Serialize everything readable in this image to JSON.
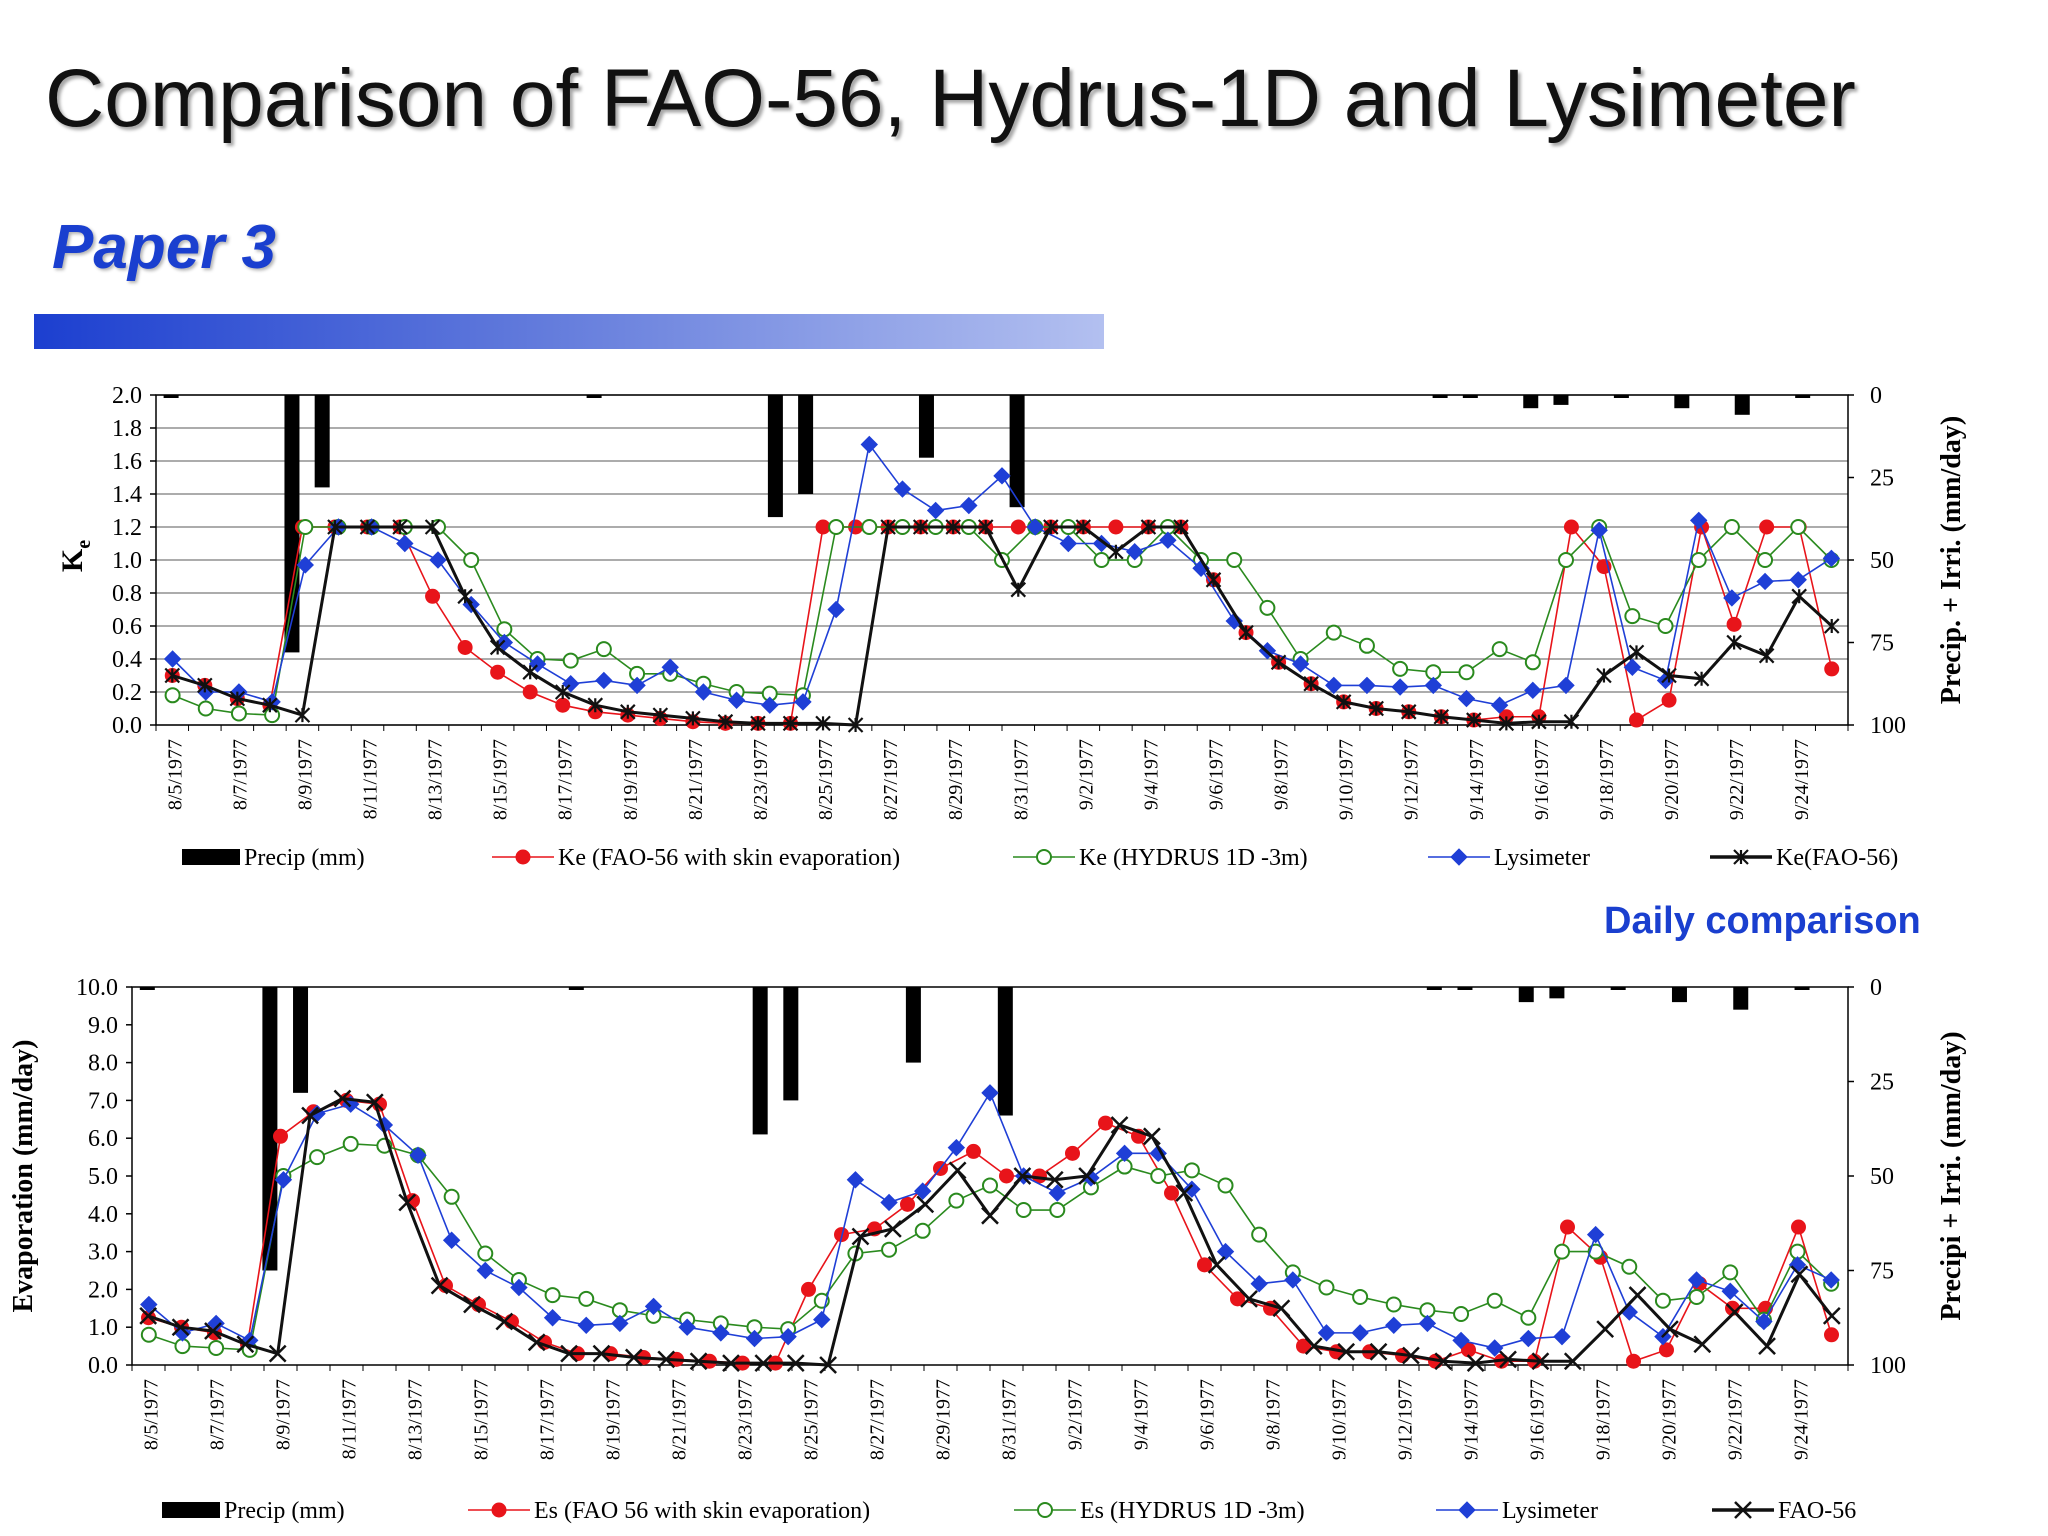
{
  "slide": {
    "title": "Comparison of FAO-56, Hydrus-1D and Lysimeter",
    "subtitle": "Paper 3",
    "note": "Daily comparison",
    "colors": {
      "subtitle": "#1a3fcf",
      "bar_start": "#1c3fd0",
      "bar_end": "#b3c0f0"
    }
  },
  "chart_data": [
    {
      "type": "line",
      "ylabel": "Ke",
      "ylabel_main": "K",
      "ylabel_sub": "e",
      "y2label": "Precip. + Irri. (mm/day)",
      "ylim": [
        0,
        2.0
      ],
      "yticks": [
        "0.0",
        "0.2",
        "0.4",
        "0.6",
        "0.8",
        "1.0",
        "1.2",
        "1.4",
        "1.6",
        "1.8",
        "2.0"
      ],
      "y2lim": [
        100,
        0
      ],
      "y2ticks": [
        "0",
        "25",
        "50",
        "75",
        "100"
      ],
      "grid": true,
      "legend_position": "bottom",
      "xticks": [
        "8/5/1977",
        "8/7/1977",
        "8/9/1977",
        "8/11/1977",
        "8/13/1977",
        "8/15/1977",
        "8/17/1977",
        "8/19/1977",
        "8/21/1977",
        "8/23/1977",
        "8/25/1977",
        "8/27/1977",
        "8/29/1977",
        "8/31/1977",
        "9/2/1977",
        "9/4/1977",
        "9/6/1977",
        "9/8/1977",
        "9/10/1977",
        "9/12/1977",
        "9/14/1977",
        "9/16/1977",
        "9/18/1977",
        "9/20/1977",
        "9/22/1977",
        "9/24/1977"
      ],
      "precip": {
        "name": "Precip (mm)",
        "color": "#000000",
        "values": [
          0.3,
          0,
          0,
          0,
          78,
          28,
          0,
          0,
          0,
          0,
          0,
          0,
          0,
          0,
          0.3,
          0,
          0,
          0,
          0,
          0,
          37,
          30,
          0,
          0,
          0,
          19,
          0,
          0,
          34,
          0,
          0,
          0,
          0,
          0,
          0,
          0,
          0,
          0,
          0,
          0,
          0,
          0,
          0.5,
          0.5,
          0,
          4,
          3,
          0,
          0.5,
          0,
          4,
          0,
          6,
          0,
          0.5,
          0
        ]
      },
      "series": [
        {
          "name": "Ke (FAO-56 with skin evaporation)",
          "color": "#e8141a",
          "marker": "circle-filled",
          "values": [
            0.3,
            0.24,
            0.16,
            0.12,
            1.2,
            1.2,
            1.2,
            1.2,
            0.78,
            0.47,
            0.32,
            0.2,
            0.12,
            0.08,
            0.06,
            0.04,
            0.02,
            0.01,
            0.01,
            0.01,
            1.2,
            1.2,
            1.2,
            1.2,
            1.2,
            1.2,
            1.2,
            1.2,
            1.2,
            1.2,
            1.2,
            1.2,
            0.88,
            0.56,
            0.38,
            0.25,
            0.14,
            0.1,
            0.08,
            0.05,
            0.03,
            0.05,
            0.05,
            1.2,
            0.96,
            0.03,
            0.15,
            1.2,
            0.61,
            1.2,
            1.2,
            0.34
          ]
        },
        {
          "name": "Ke (HYDRUS 1D -3m)",
          "color": "#2a8a1e",
          "marker": "circle-open",
          "values": [
            0.18,
            0.1,
            0.07,
            0.06,
            1.2,
            1.2,
            1.2,
            1.2,
            1.2,
            1.0,
            0.58,
            0.4,
            0.39,
            0.46,
            0.31,
            0.31,
            0.25,
            0.2,
            0.19,
            0.18,
            1.2,
            1.2,
            1.2,
            1.2,
            1.2,
            1.0,
            1.2,
            1.2,
            1.0,
            1.0,
            1.2,
            1.0,
            1.0,
            0.71,
            0.4,
            0.56,
            0.48,
            0.34,
            0.32,
            0.32,
            0.46,
            0.38,
            1.0,
            1.2,
            0.66,
            0.6,
            1.0,
            1.2,
            1.0,
            1.2,
            1.0
          ]
        },
        {
          "name": "Lysimeter",
          "color": "#1f3fd6",
          "marker": "diamond-filled",
          "values": [
            0.4,
            0.2,
            0.2,
            0.14,
            0.97,
            1.2,
            1.2,
            1.1,
            1.0,
            0.73,
            0.5,
            0.37,
            0.25,
            0.27,
            0.24,
            0.35,
            0.2,
            0.15,
            0.12,
            0.14,
            0.7,
            1.7,
            1.43,
            1.3,
            1.33,
            1.51,
            1.2,
            1.1,
            1.1,
            1.05,
            1.12,
            0.95,
            0.63,
            0.45,
            0.37,
            0.24,
            0.24,
            0.23,
            0.24,
            0.16,
            0.12,
            0.21,
            0.24,
            1.18,
            0.35,
            0.27,
            1.24,
            0.77,
            0.87,
            0.88,
            1.01
          ]
        },
        {
          "name": "Ke(FAO-56)",
          "color": "#111111",
          "marker": "asterisk",
          "values": [
            0.3,
            0.24,
            0.16,
            0.12,
            0.06,
            1.2,
            1.2,
            1.2,
            1.2,
            0.78,
            0.47,
            0.32,
            0.2,
            0.12,
            0.08,
            0.06,
            0.04,
            0.02,
            0.01,
            0.01,
            0.01,
            0.0,
            1.2,
            1.2,
            1.2,
            1.2,
            0.82,
            1.2,
            1.2,
            1.05,
            1.2,
            1.2,
            0.88,
            0.56,
            0.38,
            0.25,
            0.14,
            0.1,
            0.08,
            0.05,
            0.03,
            0.01,
            0.02,
            0.02,
            0.3,
            0.44,
            0.3,
            0.28,
            0.5,
            0.42,
            0.78,
            0.6
          ]
        }
      ]
    },
    {
      "type": "line",
      "ylabel": "Evaporation (mm/day)",
      "y2label": "Precipi + Irri. (mm/day)",
      "ylim": [
        0,
        10.0
      ],
      "yticks": [
        "0.0",
        "1.0",
        "2.0",
        "3.0",
        "4.0",
        "5.0",
        "6.0",
        "7.0",
        "8.0",
        "9.0",
        "10.0"
      ],
      "y2lim": [
        100,
        0
      ],
      "y2ticks": [
        "0",
        "25",
        "50",
        "75",
        "100"
      ],
      "grid": false,
      "legend_position": "bottom",
      "xticks": [
        "8/5/1977",
        "8/7/1977",
        "8/9/1977",
        "8/11/1977",
        "8/13/1977",
        "8/15/1977",
        "8/17/1977",
        "8/19/1977",
        "8/21/1977",
        "8/23/1977",
        "8/25/1977",
        "8/27/1977",
        "8/29/1977",
        "8/31/1977",
        "9/2/1977",
        "9/4/1977",
        "9/6/1977",
        "9/8/1977",
        "9/10/1977",
        "9/12/1977",
        "9/14/1977",
        "9/16/1977",
        "9/18/1977",
        "9/20/1977",
        "9/22/1977",
        "9/24/1977"
      ],
      "precip": {
        "name": "Precip (mm)",
        "color": "#000000",
        "values": [
          0.3,
          0,
          0,
          0,
          75,
          28,
          0,
          0,
          0,
          0,
          0,
          0,
          0,
          0,
          0.3,
          0,
          0,
          0,
          0,
          0,
          39,
          30,
          0,
          0,
          0,
          20,
          0,
          0,
          34,
          0,
          0,
          0,
          0,
          0,
          0,
          0,
          0,
          0,
          0,
          0,
          0,
          0,
          0.5,
          0.5,
          0,
          4,
          3,
          0,
          0.5,
          0,
          4,
          0,
          6,
          0,
          0.5,
          0
        ]
      },
      "series": [
        {
          "name": "Es (FAO 56 with skin evaporation)",
          "color": "#e8141a",
          "marker": "circle-filled",
          "values": [
            1.25,
            1.0,
            0.85,
            0.55,
            6.05,
            6.7,
            7.0,
            6.9,
            4.35,
            2.1,
            1.6,
            1.15,
            0.6,
            0.3,
            0.3,
            0.2,
            0.15,
            0.1,
            0.05,
            0.05,
            2.0,
            3.45,
            3.6,
            4.25,
            5.2,
            5.65,
            5.0,
            5.0,
            5.6,
            6.4,
            6.05,
            4.55,
            2.65,
            1.75,
            1.5,
            0.5,
            0.35,
            0.35,
            0.25,
            0.1,
            0.4,
            0.1,
            0.1,
            3.65,
            2.85,
            0.1,
            0.4,
            2.15,
            1.5,
            1.5,
            3.65,
            0.8
          ]
        },
        {
          "name": "Es (HYDRUS 1D -3m)",
          "color": "#2a8a1e",
          "marker": "circle-open",
          "values": [
            0.8,
            0.5,
            0.45,
            0.4,
            5.0,
            5.5,
            5.85,
            5.8,
            5.55,
            4.45,
            2.95,
            2.25,
            1.85,
            1.75,
            1.45,
            1.3,
            1.2,
            1.1,
            1.0,
            0.95,
            1.7,
            2.95,
            3.05,
            3.55,
            4.35,
            4.75,
            4.1,
            4.1,
            4.7,
            5.25,
            5.0,
            5.15,
            4.75,
            3.45,
            2.45,
            2.05,
            1.8,
            1.6,
            1.45,
            1.35,
            1.7,
            1.25,
            3.0,
            3.0,
            2.6,
            1.7,
            1.8,
            2.45,
            1.2,
            3.0,
            2.15
          ]
        },
        {
          "name": "Lysimeter",
          "color": "#1f3fd6",
          "marker": "diamond-filled",
          "values": [
            1.6,
            0.85,
            1.1,
            0.65,
            4.9,
            6.65,
            6.9,
            6.35,
            5.55,
            3.3,
            2.5,
            2.05,
            1.25,
            1.05,
            1.1,
            1.55,
            1.0,
            0.85,
            0.7,
            0.75,
            1.2,
            4.9,
            4.3,
            4.6,
            5.75,
            7.2,
            5.0,
            4.55,
            4.95,
            5.6,
            5.6,
            4.65,
            3.0,
            2.15,
            2.25,
            0.85,
            0.85,
            1.05,
            1.1,
            0.65,
            0.45,
            0.7,
            0.75,
            3.45,
            1.4,
            0.75,
            2.25,
            1.95,
            1.15,
            2.65,
            2.25
          ]
        },
        {
          "name": "FAO-56",
          "color": "#111111",
          "marker": "x",
          "values": [
            1.3,
            1.0,
            0.9,
            0.55,
            0.3,
            6.6,
            7.05,
            6.95,
            4.3,
            2.1,
            1.6,
            1.15,
            0.6,
            0.3,
            0.3,
            0.2,
            0.15,
            0.1,
            0.05,
            0.05,
            0.05,
            0.0,
            3.4,
            3.6,
            4.25,
            5.15,
            3.95,
            5.0,
            4.9,
            5.0,
            6.35,
            6.05,
            4.55,
            2.65,
            1.75,
            1.5,
            0.5,
            0.35,
            0.35,
            0.25,
            0.1,
            0.05,
            0.15,
            0.1,
            0.1,
            0.95,
            1.85,
            0.95,
            0.55,
            1.4,
            0.5,
            2.4,
            1.3
          ]
        }
      ]
    }
  ]
}
